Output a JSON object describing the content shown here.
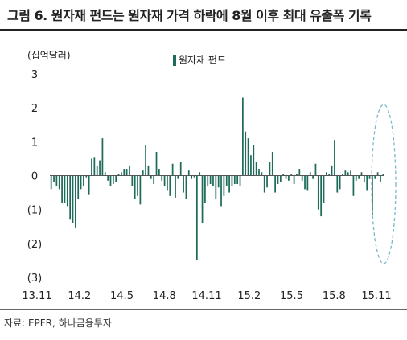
{
  "header": {
    "title": "그림 6. 원자재 펀드는 원자재 가격 하락에 8월 이후 최대 유출폭 기록"
  },
  "footer": {
    "source": "자료: EPFR, 하나금융투자"
  },
  "chart_data": {
    "type": "bar",
    "title": "그림 6. 원자재 펀드는 원자재 가격 하락에 8월 이후 최대 유출폭 기록",
    "unit_label": "(십억달러)",
    "ylim": [
      -3,
      3
    ],
    "yticks": [
      3,
      2,
      1,
      0,
      -1,
      -2,
      -3
    ],
    "ytick_labels": [
      "3",
      "2",
      "1",
      "0",
      "(1)",
      "(2)",
      "(3)"
    ],
    "xtick_labels": [
      "13.11",
      "14.2",
      "14.5",
      "14.8",
      "14.11",
      "15.2",
      "15.5",
      "15.8",
      "15.11"
    ],
    "grid": false,
    "legend": "top-center",
    "bar_color": "#1f6b5a",
    "highlight_color": "#7ab8cc",
    "series": [
      {
        "name": "원자재 펀드",
        "values": [
          -0.4,
          -0.2,
          -0.3,
          -0.4,
          -0.8,
          -0.8,
          -0.9,
          -1.3,
          -1.4,
          -1.55,
          -0.7,
          -0.4,
          -0.3,
          -0.05,
          -0.55,
          0.5,
          0.55,
          0.3,
          0.45,
          1.1,
          0.1,
          -0.15,
          -0.3,
          -0.25,
          -0.2,
          0.05,
          0.1,
          0.2,
          0.2,
          0.3,
          -0.3,
          -0.7,
          -0.6,
          -0.85,
          0.15,
          0.9,
          0.3,
          -0.1,
          -0.25,
          0.7,
          0.2,
          -0.15,
          -0.3,
          -0.45,
          -0.6,
          0.35,
          -0.65,
          -0.1,
          0.4,
          -0.5,
          -0.7,
          0.15,
          -0.1,
          -0.05,
          -2.5,
          0.1,
          -1.4,
          -0.8,
          -0.3,
          -0.25,
          -0.3,
          -0.7,
          -0.35,
          -0.9,
          -0.6,
          -0.3,
          -0.5,
          -0.3,
          -0.25,
          -0.25,
          -0.3,
          2.3,
          1.3,
          1.1,
          0.6,
          0.9,
          0.4,
          0.2,
          0.1,
          -0.5,
          -0.35,
          0.4,
          0.7,
          -0.5,
          -0.25,
          -0.2,
          0.05,
          -0.1,
          -0.15,
          0.05,
          -0.25,
          0.05,
          0.2,
          -0.15,
          -0.4,
          -0.45,
          0.1,
          -0.1,
          0.35,
          -1.0,
          -1.2,
          -0.8,
          0.1,
          0.05,
          0.3,
          1.05,
          -0.5,
          -0.4,
          0.05,
          0.15,
          0.1,
          0.15,
          -0.6,
          -0.15,
          -0.1,
          0.1,
          -0.2,
          -0.45,
          -0.1,
          -1.15,
          -0.1,
          0.1,
          -0.2,
          0.05
        ]
      }
    ]
  }
}
